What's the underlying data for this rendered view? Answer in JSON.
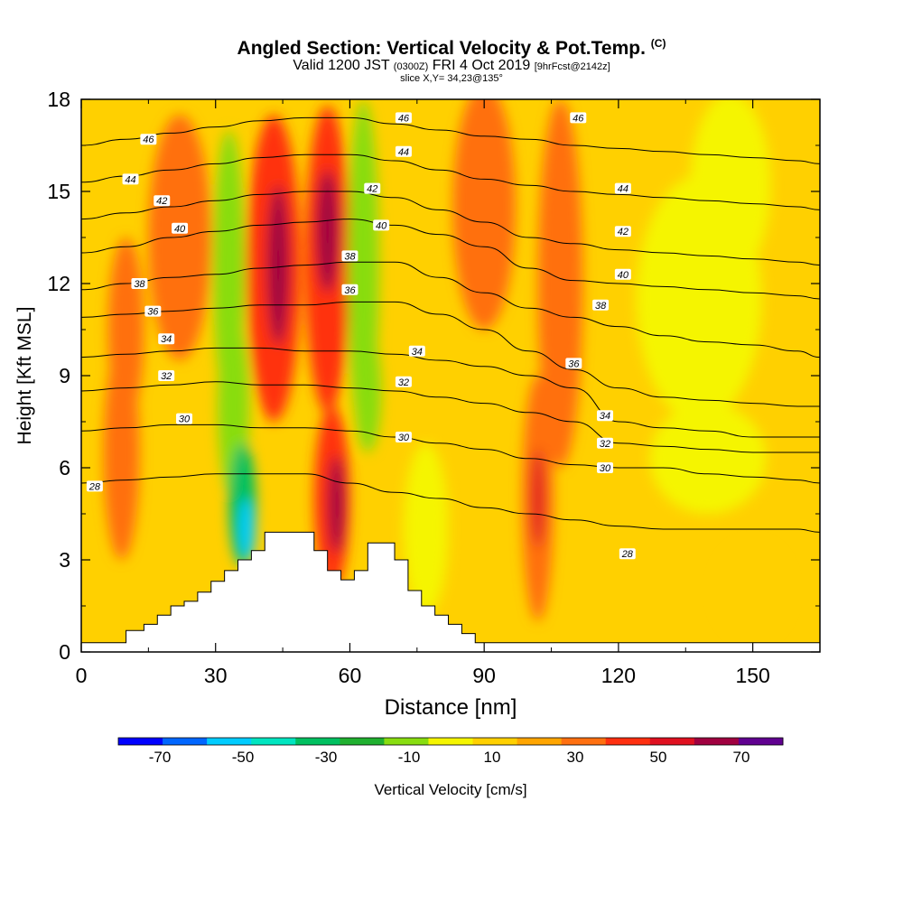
{
  "title": {
    "main": "Angled Section: Vertical Velocity & Pot.Temp.",
    "units_tag": "(C)",
    "valid_prefix": "Valid 1200 JST",
    "valid_utc": "(0300Z)",
    "valid_date": "FRI 4 Oct 2019",
    "forecast": "[9hrFcst@2142z]",
    "slice": "slice X,Y= 34,23@135°"
  },
  "chart_data": {
    "type": "heatmap",
    "xlabel": "Distance [nm]",
    "ylabel": "Height [Kft MSL]",
    "xlim": [
      0,
      165
    ],
    "ylim": [
      0,
      18
    ],
    "x_ticks": [
      0,
      30,
      60,
      90,
      120,
      150
    ],
    "y_ticks": [
      0,
      3,
      6,
      9,
      12,
      15,
      18
    ],
    "colorbar": {
      "label": "Vertical Velocity [cm/s]",
      "levels": [
        -80,
        -70,
        -60,
        -50,
        -40,
        -30,
        -20,
        -10,
        0,
        10,
        20,
        30,
        40,
        50,
        60,
        70,
        80
      ],
      "tick_values": [
        -70,
        -50,
        -30,
        -10,
        10,
        30,
        50,
        70
      ],
      "colors": [
        "#0000ff",
        "#0066ff",
        "#00ccff",
        "#00e5c0",
        "#00c060",
        "#20b030",
        "#88dd10",
        "#f5f500",
        "#ffd000",
        "#ffa500",
        "#ff7010",
        "#ff3010",
        "#e01020",
        "#a00040",
        "#600090"
      ]
    },
    "terrain_profile": [
      [
        0,
        0.3
      ],
      [
        10,
        0.3
      ],
      [
        10,
        0.7
      ],
      [
        14,
        0.7
      ],
      [
        14,
        0.9
      ],
      [
        17,
        0.9
      ],
      [
        17,
        1.2
      ],
      [
        20,
        1.2
      ],
      [
        20,
        1.5
      ],
      [
        23,
        1.5
      ],
      [
        23,
        1.65
      ],
      [
        26,
        1.65
      ],
      [
        26,
        1.95
      ],
      [
        29,
        1.95
      ],
      [
        29,
        2.3
      ],
      [
        32,
        2.3
      ],
      [
        32,
        2.65
      ],
      [
        35,
        2.65
      ],
      [
        35,
        3.0
      ],
      [
        38,
        3.0
      ],
      [
        38,
        3.3
      ],
      [
        41,
        3.3
      ],
      [
        41,
        3.9
      ],
      [
        47,
        3.9
      ],
      [
        47,
        3.9
      ],
      [
        52,
        3.9
      ],
      [
        52,
        3.3
      ],
      [
        55,
        3.3
      ],
      [
        55,
        2.65
      ],
      [
        58,
        2.65
      ],
      [
        58,
        2.35
      ],
      [
        61,
        2.35
      ],
      [
        61,
        2.65
      ],
      [
        64,
        2.65
      ],
      [
        64,
        3.55
      ],
      [
        70,
        3.55
      ],
      [
        70,
        3.0
      ],
      [
        73,
        3.0
      ],
      [
        73,
        2.0
      ],
      [
        76,
        2.0
      ],
      [
        76,
        1.5
      ],
      [
        79,
        1.5
      ],
      [
        79,
        1.2
      ],
      [
        82,
        1.2
      ],
      [
        82,
        0.9
      ],
      [
        85,
        0.9
      ],
      [
        85,
        0.6
      ],
      [
        88,
        0.6
      ],
      [
        88,
        0.3
      ],
      [
        165,
        0.3
      ]
    ],
    "velocity_features": [
      {
        "x": 9,
        "y": 6.5,
        "rx": 4,
        "ry": 3.5,
        "value": 25
      },
      {
        "x": 10,
        "y": 10.5,
        "rx": 4,
        "ry": 3,
        "value": 20
      },
      {
        "x": 22,
        "y": 13.5,
        "rx": 7,
        "ry": 4,
        "value": 20
      },
      {
        "x": 33,
        "y": 12.5,
        "rx": 3.5,
        "ry": 4.5,
        "value": -15
      },
      {
        "x": 34,
        "y": 8,
        "rx": 3.5,
        "ry": 3,
        "value": -20
      },
      {
        "x": 36,
        "y": 4.8,
        "rx": 3,
        "ry": 2,
        "value": -35
      },
      {
        "x": 37,
        "y": 4.0,
        "rx": 1.8,
        "ry": 1.0,
        "value": -55
      },
      {
        "x": 43,
        "y": 12.5,
        "rx": 6,
        "ry": 5,
        "value": 35
      },
      {
        "x": 44,
        "y": 12.6,
        "rx": 2.5,
        "ry": 2.6,
        "value": 55
      },
      {
        "x": 55,
        "y": 12.8,
        "rx": 5,
        "ry": 5,
        "value": 35
      },
      {
        "x": 55,
        "y": 13.7,
        "rx": 2.5,
        "ry": 2,
        "value": 55
      },
      {
        "x": 56,
        "y": 5.0,
        "rx": 4,
        "ry": 3,
        "value": 35
      },
      {
        "x": 57,
        "y": 4.8,
        "rx": 1.8,
        "ry": 1.6,
        "value": 55
      },
      {
        "x": 63,
        "y": 12.5,
        "rx": 3.5,
        "ry": 5.5,
        "value": -15
      },
      {
        "x": 64,
        "y": 8.5,
        "rx": 3,
        "ry": 2,
        "value": -20
      },
      {
        "x": 77,
        "y": 4.0,
        "rx": 5,
        "ry": 2.8,
        "value": -10
      },
      {
        "x": 90,
        "y": 14.5,
        "rx": 7,
        "ry": 4,
        "value": 20
      },
      {
        "x": 102,
        "y": 5.0,
        "rx": 3.5,
        "ry": 4,
        "value": 25
      },
      {
        "x": 102,
        "y": 5.0,
        "rx": 1.5,
        "ry": 1.6,
        "value": 40
      },
      {
        "x": 107,
        "y": 12.0,
        "rx": 5,
        "ry": 6,
        "value": 20
      },
      {
        "x": 138,
        "y": 11.5,
        "rx": 14,
        "ry": 4,
        "value": -10
      },
      {
        "x": 145,
        "y": 15.2,
        "rx": 9,
        "ry": 3,
        "value": -10
      },
      {
        "x": 140,
        "y": 6.3,
        "rx": 13,
        "ry": 1.8,
        "value": -10
      },
      {
        "x": 150,
        "y": 2.0,
        "rx": 8,
        "ry": 1.5,
        "value": 5
      }
    ],
    "theta_contours": [
      {
        "level": 28,
        "label": "28",
        "y": [
          5.5,
          5.6,
          5.7,
          5.8,
          5.8,
          5.8,
          5.5,
          5.2,
          5.0,
          4.7,
          4.5,
          4.3,
          4.1,
          4.0,
          4.0,
          4.0,
          4.0,
          3.9
        ]
      },
      {
        "level": 30,
        "label": "30",
        "y": [
          7.2,
          7.3,
          7.4,
          7.4,
          7.3,
          7.3,
          7.2,
          7.0,
          6.8,
          6.6,
          6.3,
          6.1,
          6.0,
          6.0,
          5.8,
          5.7,
          5.6,
          5.5
        ]
      },
      {
        "level": 32,
        "label": "32",
        "y": [
          8.5,
          8.6,
          8.7,
          8.8,
          8.7,
          8.7,
          8.6,
          8.5,
          8.3,
          8.1,
          7.8,
          7.5,
          6.8,
          6.7,
          6.6,
          6.5,
          6.5,
          6.5
        ]
      },
      {
        "level": 34,
        "label": "34",
        "y": [
          9.6,
          9.7,
          9.8,
          9.9,
          9.9,
          9.8,
          9.8,
          9.7,
          9.5,
          9.3,
          9.0,
          8.6,
          7.5,
          7.3,
          7.2,
          7.0,
          7.0,
          7.0
        ]
      },
      {
        "level": 36,
        "label": "36",
        "y": [
          10.9,
          11.0,
          11.1,
          11.2,
          11.3,
          11.3,
          11.4,
          11.4,
          11.0,
          10.5,
          9.8,
          9.2,
          8.6,
          8.3,
          8.2,
          8.1,
          8.0,
          8.0
        ]
      },
      {
        "level": 38,
        "label": "38",
        "y": [
          11.8,
          12.0,
          12.2,
          12.3,
          12.5,
          12.6,
          12.7,
          12.7,
          12.2,
          11.7,
          11.2,
          10.9,
          10.6,
          10.3,
          10.1,
          10.0,
          9.8,
          9.6
        ]
      },
      {
        "level": 40,
        "label": "40",
        "y": [
          13.0,
          13.2,
          13.5,
          13.7,
          13.9,
          14.0,
          14.1,
          13.9,
          13.6,
          13.2,
          12.5,
          12.1,
          12.0,
          11.9,
          11.8,
          11.7,
          11.6,
          11.5
        ]
      },
      {
        "level": 42,
        "label": "42",
        "y": [
          14.1,
          14.3,
          14.5,
          14.7,
          14.9,
          15.0,
          15.0,
          14.8,
          14.4,
          14.0,
          13.5,
          13.3,
          13.1,
          13.0,
          12.9,
          12.8,
          12.7,
          12.6
        ]
      },
      {
        "level": 44,
        "label": "44",
        "y": [
          15.3,
          15.5,
          15.7,
          15.9,
          16.1,
          16.2,
          16.2,
          16.0,
          15.7,
          15.4,
          15.2,
          15.0,
          14.9,
          14.8,
          14.7,
          14.6,
          14.5,
          14.4
        ]
      },
      {
        "level": 46,
        "label": "46",
        "y": [
          16.5,
          16.7,
          16.9,
          17.1,
          17.3,
          17.4,
          17.4,
          17.2,
          17.0,
          16.8,
          16.7,
          16.5,
          16.4,
          16.3,
          16.2,
          16.1,
          16.0,
          15.9
        ]
      }
    ],
    "theta_x": [
      0,
      10,
      20,
      30,
      40,
      50,
      60,
      70,
      80,
      90,
      100,
      110,
      120,
      130,
      140,
      150,
      160,
      165
    ],
    "contour_label_positions": [
      {
        "label": "28",
        "x": 3,
        "y": 5.4
      },
      {
        "label": "28",
        "x": 122,
        "y": 3.2
      },
      {
        "label": "30",
        "x": 23,
        "y": 7.6
      },
      {
        "label": "30",
        "x": 72,
        "y": 7.0
      },
      {
        "label": "30",
        "x": 117,
        "y": 6.0
      },
      {
        "label": "32",
        "x": 19,
        "y": 9.0
      },
      {
        "label": "32",
        "x": 72,
        "y": 8.8
      },
      {
        "label": "32",
        "x": 117,
        "y": 6.8
      },
      {
        "label": "34",
        "x": 19,
        "y": 10.2
      },
      {
        "label": "34",
        "x": 75,
        "y": 9.8
      },
      {
        "label": "34",
        "x": 117,
        "y": 7.7
      },
      {
        "label": "36",
        "x": 16,
        "y": 11.1
      },
      {
        "label": "36",
        "x": 60,
        "y": 11.8
      },
      {
        "label": "36",
        "x": 110,
        "y": 9.4
      },
      {
        "label": "38",
        "x": 13,
        "y": 12.0
      },
      {
        "label": "38",
        "x": 60,
        "y": 12.9
      },
      {
        "label": "38",
        "x": 116,
        "y": 11.3
      },
      {
        "label": "40",
        "x": 22,
        "y": 13.8
      },
      {
        "label": "40",
        "x": 67,
        "y": 13.9
      },
      {
        "label": "40",
        "x": 121,
        "y": 12.3
      },
      {
        "label": "42",
        "x": 18,
        "y": 14.7
      },
      {
        "label": "42",
        "x": 65,
        "y": 15.1
      },
      {
        "label": "42",
        "x": 121,
        "y": 13.7
      },
      {
        "label": "44",
        "x": 11,
        "y": 15.4
      },
      {
        "label": "44",
        "x": 72,
        "y": 16.3
      },
      {
        "label": "44",
        "x": 121,
        "y": 15.1
      },
      {
        "label": "46",
        "x": 15,
        "y": 16.7
      },
      {
        "label": "46",
        "x": 72,
        "y": 17.4
      },
      {
        "label": "46",
        "x": 111,
        "y": 17.4
      }
    ]
  }
}
